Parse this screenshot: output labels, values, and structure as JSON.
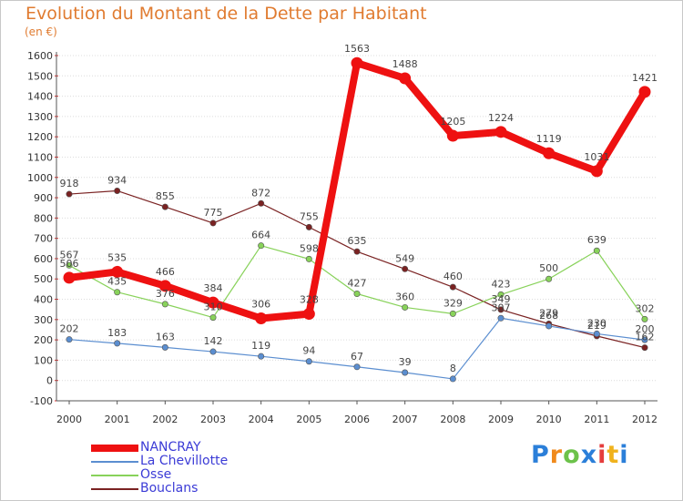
{
  "header": {
    "title": "Evolution du Montant de la Dette par Habitant",
    "subtitle": "(en €)"
  },
  "brand": {
    "logo_letters": [
      "P",
      "r",
      "o",
      "x",
      "i",
      "t",
      "i"
    ],
    "logo_colors": [
      "#2b7fd9",
      "#f08a1c",
      "#6cc24a",
      "#2b7fd9",
      "#e53d3d",
      "#f0b21c",
      "#2b7fd9"
    ]
  },
  "colors": {
    "title": "#e07b30",
    "legend_text": "#3b3bd6",
    "grid": "#dcdcdc",
    "axis": "#555555"
  },
  "chart_data": {
    "type": "line",
    "x": [
      "2000",
      "2001",
      "2002",
      "2003",
      "2004",
      "2005",
      "2006",
      "2007",
      "2008",
      "2009",
      "2010",
      "2011",
      "2012"
    ],
    "ylim": [
      -100,
      1600
    ],
    "yticks": [
      -100,
      0,
      100,
      200,
      300,
      400,
      500,
      600,
      700,
      800,
      900,
      1000,
      1100,
      1200,
      1300,
      1400,
      1500,
      1600
    ],
    "grid": "horizontal",
    "legend_position": "bottom-left",
    "series": [
      {
        "name": "NANCRAY",
        "color": "#ee1111",
        "values": [
          506,
          535,
          466,
          384,
          306,
          328,
          1563,
          1488,
          1205,
          1224,
          1119,
          1031,
          1421
        ],
        "labels": [
          "506",
          "535",
          "466",
          "384",
          "306",
          "328",
          "1563",
          "1488",
          "1205",
          "1224",
          "1119",
          "1031",
          "1421"
        ]
      },
      {
        "name": "La Chevillotte",
        "color": "#5b8ed0",
        "values": [
          202,
          183,
          163,
          142,
          119,
          94,
          67,
          39,
          8,
          307,
          268,
          230,
          200
        ],
        "labels": [
          "202",
          "183",
          "163",
          "142",
          "119",
          "94",
          "67",
          "39",
          "8",
          "307",
          "268",
          "230",
          "200"
        ]
      },
      {
        "name": "Osse",
        "color": "#88d25a",
        "values": [
          567,
          435,
          376,
          310,
          664,
          598,
          427,
          360,
          329,
          423,
          500,
          639,
          302
        ],
        "labels": [
          "567",
          "435",
          "376",
          "310",
          "664",
          "598",
          "427",
          "360",
          "329",
          "423",
          "500",
          "639",
          "302"
        ]
      },
      {
        "name": "Bouclans",
        "color": "#7a2222",
        "values": [
          918,
          934,
          855,
          775,
          872,
          755,
          635,
          549,
          460,
          349,
          279,
          219,
          162
        ],
        "labels": [
          "918",
          "934",
          "855",
          "775",
          "872",
          "755",
          "635",
          "549",
          "460",
          "349",
          "279",
          "219",
          "162"
        ]
      }
    ]
  }
}
